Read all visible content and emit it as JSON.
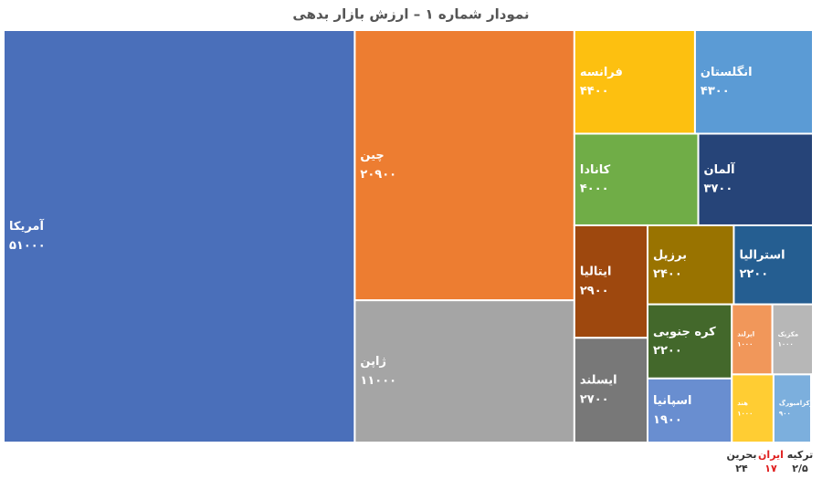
{
  "chart_data": {
    "type": "treemap",
    "title": "نمودار شماره ۱ – ارزش بازار بدهی",
    "categories": [
      "آمریکا",
      "چین",
      "ژاپن",
      "فرانسه",
      "انگلستان",
      "کانادا",
      "آلمان",
      "ایتالیا",
      "ایسلند",
      "برزیل",
      "استرالیا",
      "کره جنوبی",
      "اسپانیا",
      "ایرلند",
      "مکزیک",
      "هند",
      "لوکزامبورگ",
      "بحرین",
      "ایران",
      "ترکیه"
    ],
    "values": [
      51000,
      20900,
      11000,
      4400,
      4300,
      4000,
      3700,
      2900,
      2700,
      2400,
      2200,
      2200,
      1900,
      1000,
      1000,
      1000,
      900,
      24,
      17,
      2.5
    ],
    "value_labels": [
      "۵۱۰۰۰",
      "۲۰۹۰۰",
      "۱۱۰۰۰",
      "۴۴۰۰",
      "۴۳۰۰",
      "۴۰۰۰",
      "۳۷۰۰",
      "۲۹۰۰",
      "۲۷۰۰",
      "۲۴۰۰",
      "۲۲۰۰",
      "۲۲۰۰",
      "۱۹۰۰",
      "۱۰۰۰",
      "۱۰۰۰",
      "۱۰۰۰",
      "۹۰۰",
      "۲۴",
      "۱۷",
      "۲/۵"
    ],
    "colors": [
      "#4a6fba",
      "#ed7d31",
      "#a5a5a5",
      "#fdc010",
      "#5b9bd5",
      "#70ad47",
      "#264478",
      "#9e480e",
      "#787878",
      "#997300",
      "#255e91",
      "#43682b",
      "#698ed0",
      "#f1975a",
      "#b7b7b7",
      "#ffcd33",
      "#7cafdd",
      "#333333",
      "#e02020",
      "#333333"
    ]
  }
}
